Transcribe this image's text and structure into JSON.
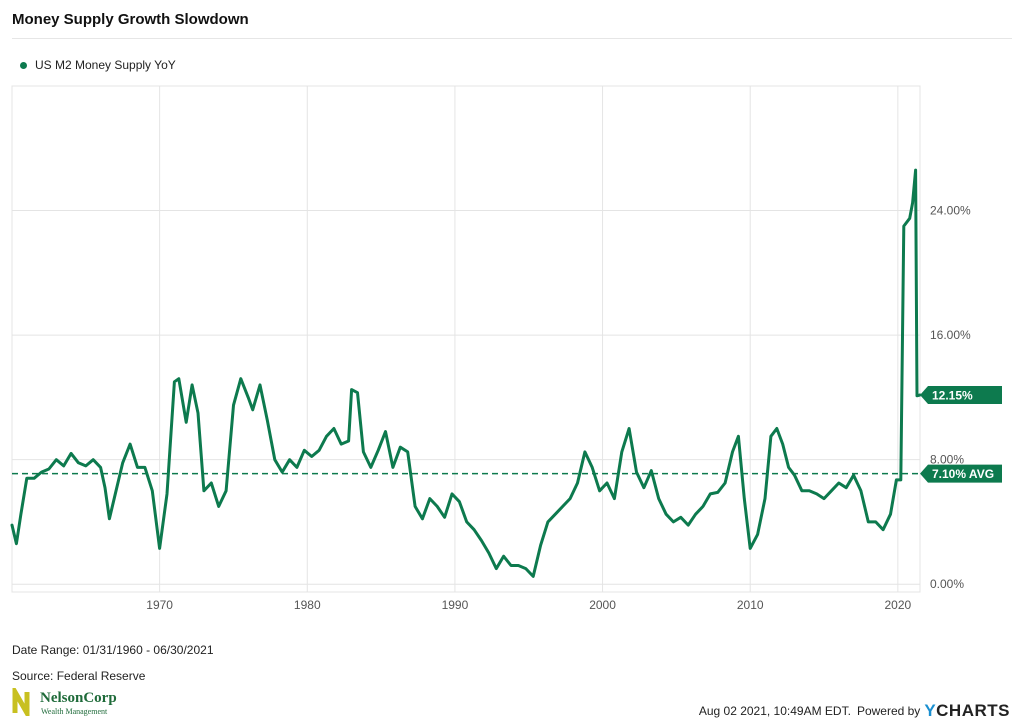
{
  "title": "Money Supply Growth Slowdown",
  "legend": {
    "label": "US M2 Money Supply YoY",
    "color": "#0d7a4e"
  },
  "footer": {
    "date_range": "Date Range: 01/31/1960 - 06/30/2021",
    "source": "Source: Federal Reserve",
    "timestamp": "Aug 02 2021, 10:49AM EDT.",
    "powered_by": "Powered by",
    "brand": "CHARTS",
    "brand_y": "Y"
  },
  "logo": {
    "name": "NelsonCorp",
    "sub": "Wealth Management",
    "icon": "nelsoncorp-logo"
  },
  "chart_data": {
    "type": "line",
    "title": "Money Supply Growth Slowdown",
    "xlim": [
      1960.0,
      2021.5
    ],
    "ylim": [
      -0.5,
      32.0
    ],
    "x_ticks": [
      1970,
      1980,
      1990,
      2000,
      2010,
      2020
    ],
    "y_ticks": [
      0,
      8,
      16,
      24
    ],
    "y_tick_labels": [
      "0.00%",
      "8.00%",
      "16.00%",
      "24.00%"
    ],
    "grid": true,
    "average": {
      "value": 7.1,
      "label": "7.10% AVG"
    },
    "last": {
      "value": 12.15,
      "label": "12.15%"
    },
    "series": [
      {
        "name": "US M2 Money Supply YoY",
        "color": "#0d7a4e",
        "x": [
          1960.0,
          1960.3,
          1960.6,
          1961.0,
          1961.5,
          1962.0,
          1962.5,
          1963.0,
          1963.5,
          1964.0,
          1964.5,
          1965.0,
          1965.5,
          1966.0,
          1966.3,
          1966.6,
          1967.0,
          1967.5,
          1968.0,
          1968.5,
          1969.0,
          1969.5,
          1970.0,
          1970.5,
          1971.0,
          1971.3,
          1971.8,
          1972.2,
          1972.6,
          1973.0,
          1973.5,
          1974.0,
          1974.5,
          1975.0,
          1975.5,
          1976.0,
          1976.3,
          1976.8,
          1977.3,
          1977.8,
          1978.3,
          1978.8,
          1979.3,
          1979.8,
          1980.3,
          1980.8,
          1981.3,
          1981.8,
          1982.3,
          1982.8,
          1983.0,
          1983.4,
          1983.8,
          1984.3,
          1984.8,
          1985.3,
          1985.8,
          1986.3,
          1986.8,
          1987.3,
          1987.8,
          1988.3,
          1988.8,
          1989.3,
          1989.8,
          1990.3,
          1990.8,
          1991.3,
          1991.8,
          1992.3,
          1992.8,
          1993.3,
          1993.8,
          1994.3,
          1994.8,
          1995.3,
          1995.8,
          1996.3,
          1996.8,
          1997.3,
          1997.8,
          1998.3,
          1998.8,
          1999.3,
          1999.8,
          2000.3,
          2000.8,
          2001.3,
          2001.8,
          2002.3,
          2002.8,
          2003.3,
          2003.8,
          2004.3,
          2004.8,
          2005.3,
          2005.8,
          2006.3,
          2006.8,
          2007.3,
          2007.8,
          2008.3,
          2008.8,
          2009.2,
          2009.6,
          2010.0,
          2010.5,
          2011.0,
          2011.4,
          2011.8,
          2012.2,
          2012.6,
          2013.0,
          2013.5,
          2014.0,
          2014.5,
          2015.0,
          2015.5,
          2016.0,
          2016.5,
          2017.0,
          2017.5,
          2018.0,
          2018.5,
          2019.0,
          2019.5,
          2019.9,
          2020.2,
          2020.4,
          2020.8,
          2021.0,
          2021.2,
          2021.3,
          2021.5
        ],
        "y": [
          3.8,
          2.6,
          4.5,
          6.8,
          6.8,
          7.2,
          7.4,
          8.0,
          7.6,
          8.4,
          7.8,
          7.6,
          8.0,
          7.5,
          6.2,
          4.2,
          5.8,
          7.8,
          9.0,
          7.5,
          7.5,
          6.0,
          2.3,
          5.8,
          13.0,
          13.2,
          10.4,
          12.8,
          11.0,
          6.0,
          6.5,
          5.0,
          6.0,
          11.5,
          13.2,
          12.0,
          11.2,
          12.8,
          10.5,
          8.0,
          7.2,
          8.0,
          7.5,
          8.6,
          8.2,
          8.6,
          9.5,
          10.0,
          9.0,
          9.2,
          12.5,
          12.3,
          8.5,
          7.5,
          8.6,
          9.8,
          7.5,
          8.8,
          8.5,
          5.0,
          4.2,
          5.5,
          5.0,
          4.3,
          5.8,
          5.3,
          4.0,
          3.5,
          2.8,
          2.0,
          1.0,
          1.8,
          1.2,
          1.2,
          1.0,
          0.5,
          2.5,
          4.0,
          4.5,
          5.0,
          5.5,
          6.5,
          8.5,
          7.5,
          6.0,
          6.5,
          5.5,
          8.5,
          10.0,
          7.2,
          6.2,
          7.3,
          5.5,
          4.5,
          4.0,
          4.3,
          3.8,
          4.5,
          5.0,
          5.8,
          5.9,
          6.5,
          8.5,
          9.5,
          5.5,
          2.3,
          3.2,
          5.5,
          9.5,
          10.0,
          9.0,
          7.5,
          7.0,
          6.0,
          6.0,
          5.8,
          5.5,
          6.0,
          6.5,
          6.2,
          7.0,
          6.0,
          4.0,
          4.0,
          3.5,
          4.5,
          6.7,
          6.7,
          23.0,
          23.5,
          24.5,
          26.6,
          12.1,
          12.15
        ]
      }
    ]
  }
}
